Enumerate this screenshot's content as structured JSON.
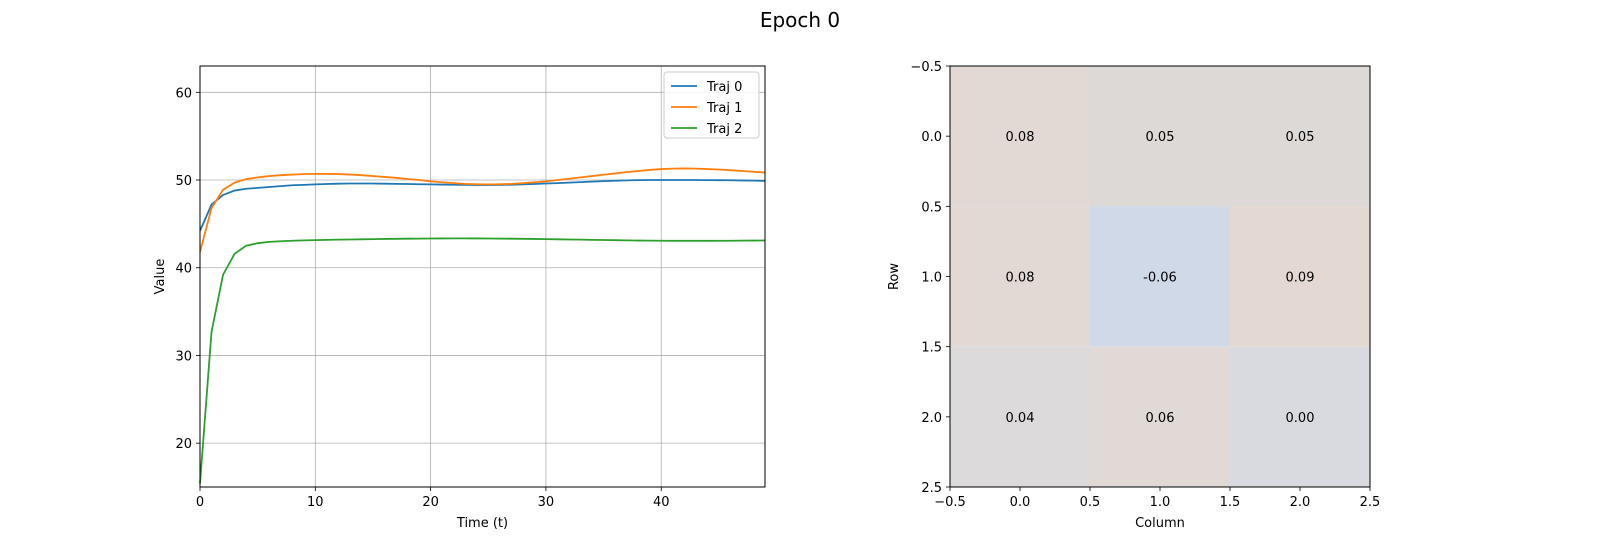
{
  "figure": {
    "title": "Epoch 0"
  },
  "chart_data": [
    {
      "type": "line",
      "xlabel": "Time (t)",
      "ylabel": "Value",
      "xlim": [
        0,
        49
      ],
      "ylim": [
        15,
        63
      ],
      "xticks": [
        0,
        10,
        20,
        30,
        40
      ],
      "yticks": [
        20,
        30,
        40,
        50,
        60
      ],
      "grid": true,
      "legend_position": "top-right",
      "x": [
        0,
        1,
        2,
        3,
        4,
        5,
        6,
        7,
        8,
        9,
        10,
        11,
        12,
        13,
        14,
        15,
        16,
        17,
        18,
        19,
        20,
        21,
        22,
        23,
        24,
        25,
        26,
        27,
        28,
        29,
        30,
        31,
        32,
        33,
        34,
        35,
        36,
        37,
        38,
        39,
        40,
        41,
        42,
        43,
        44,
        45,
        46,
        47,
        48,
        49
      ],
      "series": [
        {
          "name": "Traj 0",
          "color": "#1f77b4",
          "values": [
            44.2,
            47.2,
            48.3,
            48.8,
            49.0,
            49.1,
            49.2,
            49.3,
            49.4,
            49.45,
            49.5,
            49.55,
            49.58,
            49.6,
            49.6,
            49.6,
            49.58,
            49.56,
            49.55,
            49.52,
            49.5,
            49.48,
            49.46,
            49.45,
            49.44,
            49.44,
            49.45,
            49.47,
            49.5,
            49.55,
            49.6,
            49.65,
            49.7,
            49.76,
            49.82,
            49.87,
            49.92,
            49.96,
            49.99,
            50.0,
            50.0,
            50.0,
            50.0,
            50.0,
            49.99,
            49.98,
            49.97,
            49.95,
            49.93,
            49.9
          ]
        },
        {
          "name": "Traj 1",
          "color": "#ff7f0e",
          "values": [
            41.8,
            46.8,
            48.9,
            49.7,
            50.1,
            50.3,
            50.45,
            50.55,
            50.62,
            50.67,
            50.7,
            50.7,
            50.68,
            50.62,
            50.55,
            50.45,
            50.35,
            50.25,
            50.12,
            50.0,
            49.85,
            49.75,
            49.65,
            49.56,
            49.52,
            49.5,
            49.52,
            49.56,
            49.65,
            49.75,
            49.85,
            50.0,
            50.15,
            50.3,
            50.45,
            50.6,
            50.75,
            50.9,
            51.03,
            51.15,
            51.25,
            51.3,
            51.32,
            51.3,
            51.25,
            51.2,
            51.12,
            51.03,
            50.94,
            50.85
          ]
        },
        {
          "name": "Traj 2",
          "color": "#2ca02c",
          "values": [
            15.4,
            32.7,
            39.2,
            41.6,
            42.5,
            42.8,
            42.95,
            43.02,
            43.08,
            43.12,
            43.15,
            43.18,
            43.2,
            43.22,
            43.24,
            43.26,
            43.28,
            43.3,
            43.31,
            43.32,
            43.33,
            43.34,
            43.35,
            43.35,
            43.34,
            43.33,
            43.32,
            43.31,
            43.3,
            43.28,
            43.26,
            43.24,
            43.22,
            43.2,
            43.18,
            43.16,
            43.14,
            43.12,
            43.1,
            43.09,
            43.08,
            43.07,
            43.07,
            43.07,
            43.07,
            43.08,
            43.08,
            43.09,
            43.1,
            43.11
          ]
        }
      ]
    },
    {
      "type": "heatmap",
      "xlabel": "Column",
      "ylabel": "Row",
      "xlim": [
        -0.5,
        2.5
      ],
      "ylim": [
        -0.5,
        2.5
      ],
      "xtick_labels": [
        "−0.5",
        "0.0",
        "0.5",
        "1.0",
        "1.5",
        "2.0",
        "2.5"
      ],
      "ytick_labels": [
        "−0.5",
        "0.0",
        "0.5",
        "1.0",
        "1.5",
        "2.0",
        "2.5"
      ],
      "value_labels": [
        [
          "0.08",
          "0.05",
          "0.05"
        ],
        [
          "0.08",
          "-0.06",
          "0.09"
        ],
        [
          "0.04",
          "0.06",
          "0.00"
        ]
      ],
      "values": [
        [
          0.08,
          0.05,
          0.05
        ],
        [
          0.08,
          -0.06,
          0.09
        ],
        [
          0.04,
          0.06,
          0.0
        ]
      ],
      "cell_colors": [
        [
          "#e2d9d4",
          "#ddd9d6",
          "#ddd9d6"
        ],
        [
          "#e2d9d4",
          "#d0d9e8",
          "#e4d9d2"
        ],
        [
          "#dcdada",
          "#e0d9d5",
          "#d8dae0"
        ]
      ]
    }
  ]
}
